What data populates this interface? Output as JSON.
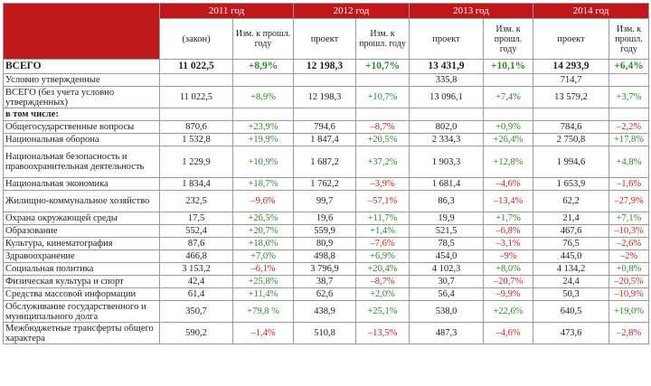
{
  "header": {
    "years": [
      "2011 год",
      "2012 год",
      "2013 год",
      "2014 год"
    ],
    "sub": {
      "y2011_plan": "(закон)",
      "change": "Изм. к прошл. году",
      "project": "проект"
    }
  },
  "rows": [
    {
      "label": "ВСЕГО",
      "type": "total",
      "cells": [
        "11 022,5",
        "+8,9%",
        "12 198,3",
        "+10,7%",
        "13 431,9",
        "+10,1%",
        "14 293,9",
        "+6,4%"
      ]
    },
    {
      "label": "Условно утвержденные",
      "type": "one",
      "cells": [
        "",
        "",
        "",
        "",
        "335,8",
        "",
        "714,7",
        ""
      ]
    },
    {
      "label": "ВСЕГО (без учета условно утвержденных)",
      "type": "two",
      "cells": [
        "11 022,5",
        "+8,9%",
        "12 198,3",
        "+10,7%",
        "13 096,1",
        "+7,4%",
        "13 579,2",
        "+3,7%"
      ]
    },
    {
      "label": "в том числе:",
      "type": "section",
      "cells": [
        "",
        "",
        "",
        "",
        "",
        "",
        "",
        ""
      ]
    },
    {
      "label": "Общегосударственные вопросы",
      "type": "one",
      "cells": [
        "870,6",
        "+23,9%",
        "794,6",
        "–8,7%",
        "802,0",
        "+0,9%",
        "784,6",
        "–2,2%"
      ]
    },
    {
      "label": "Национальная оборона",
      "type": "one",
      "cells": [
        "1 532,8",
        "+19,9%",
        "1 847,4",
        "+20,5%",
        "2 334,3",
        "+26,4%",
        "2 750,8",
        "+17,8%"
      ]
    },
    {
      "label": "Национальная безопасность и правоохранительная деятельность",
      "type": "three",
      "cells": [
        "1 229,9",
        "+10,9%",
        "1 687,2",
        "+37,2%",
        "1 903,3",
        "+12,8%",
        "1 994,6",
        "+4,8%"
      ]
    },
    {
      "label": "Национальная экономика",
      "type": "one",
      "cells": [
        "1 834,4",
        "+18,7%",
        "1 762,2",
        "–3,9%",
        "1 681,4",
        "–4,6%",
        "1 653,9",
        "–1,6%"
      ]
    },
    {
      "label": "Жилищно-коммунальное хозяйство",
      "type": "two",
      "cells": [
        "232,5",
        "–9,6%",
        "99,7",
        "–57,1%",
        "86,3",
        "–13,4%",
        "62,2",
        "–27,9%"
      ]
    },
    {
      "label": "Охрана окружающей среды",
      "type": "one",
      "cells": [
        "17,5",
        "+26,5%",
        "19,6",
        "+11,7%",
        "19,9",
        "+1,7%",
        "21,4",
        "+7,1%"
      ]
    },
    {
      "label": "Образование",
      "type": "one",
      "cells": [
        "552,4",
        "+20,7%",
        "559,9",
        "+1,4%",
        "521,5",
        "–6,8%",
        "467,6",
        "–10,3%"
      ]
    },
    {
      "label": "Культура, кинематография",
      "type": "one",
      "cells": [
        "87,6",
        "+18,0%",
        "80,9",
        "–7,6%",
        "78,5",
        "–3,1%",
        "76,5",
        "–2,6%"
      ]
    },
    {
      "label": "Здравоохранение",
      "type": "one",
      "cells": [
        "466,8",
        "+7,0%",
        "498,8",
        "+6,9%",
        "454,0",
        "–9%",
        "445,0",
        "–2%"
      ]
    },
    {
      "label": "Социальная политика",
      "type": "one",
      "cells": [
        "3 153,2",
        "–6,1%",
        "3 796,9",
        "+20,4%",
        "4 102,3",
        "+8,0%",
        "4 134,2",
        "+0,8%"
      ]
    },
    {
      "label": "Физическая культура и спорт",
      "type": "one",
      "cells": [
        "42,4",
        "+25,8%",
        "38,7",
        "–8,7%",
        "30,7",
        "–20,7%",
        "24,4",
        "–20,5%"
      ]
    },
    {
      "label": "Средства массовой информации",
      "type": "one",
      "cells": [
        "61,4",
        "+11,4%",
        "62,6",
        "+2,0%",
        "56,4",
        "–9,9%",
        "50,3",
        "–10,9%"
      ]
    },
    {
      "label": "Обслуживание государственного и муниципального долга",
      "type": "two",
      "cells": [
        "350,7",
        "+79,8 %",
        "438,9",
        "+25,1%",
        "538,0",
        "+22,6%",
        "640,5",
        "+19,0%"
      ]
    },
    {
      "label": "Межбюджетные трансферты общего характера",
      "type": "two",
      "cells": [
        "590,2",
        "–1,4%",
        "510,8",
        "–13,5%",
        "487,3",
        "–4,6%",
        "473,6",
        "–2,8%"
      ]
    }
  ],
  "colors": {
    "header_bg": "#c0171d",
    "positive": "#2a8a2a",
    "negative": "#d41c1c"
  }
}
